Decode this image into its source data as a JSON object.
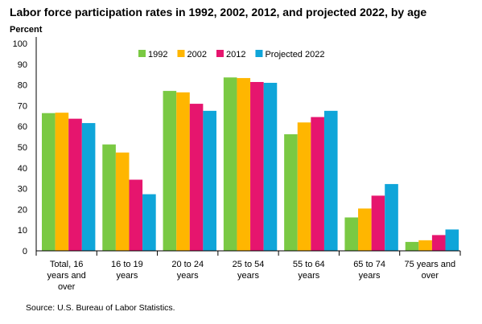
{
  "chart_data": {
    "type": "bar",
    "title": "Labor force participation rates in 1992, 2002, 2012, and projected 2022, by age",
    "ylabel": "Percent",
    "xlabel": "",
    "ylim": [
      0,
      100
    ],
    "yticks": [
      0,
      10,
      20,
      30,
      40,
      50,
      60,
      70,
      80,
      90,
      100
    ],
    "grid": false,
    "legend_position": "top",
    "categories": [
      [
        "Total, 16",
        "years and",
        "over"
      ],
      [
        "16 to 19",
        "years"
      ],
      [
        "20 to 24",
        "years"
      ],
      [
        "25 to 54",
        "years"
      ],
      [
        "55 to 64",
        "years"
      ],
      [
        "65 to 74",
        "years"
      ],
      [
        "75 years and",
        "over"
      ]
    ],
    "series": [
      {
        "name": "1992",
        "color": "#7ac943",
        "values": [
          66.4,
          51.3,
          77.1,
          83.6,
          56.2,
          16.1,
          4.3
        ]
      },
      {
        "name": "2002",
        "color": "#ffb600",
        "values": [
          66.6,
          47.4,
          76.4,
          83.3,
          61.9,
          20.4,
          5.1
        ]
      },
      {
        "name": "2012",
        "color": "#e6156e",
        "values": [
          63.7,
          34.3,
          70.9,
          81.4,
          64.5,
          26.6,
          7.6
        ]
      },
      {
        "name": "Projected 2022",
        "color": "#0fa5d9",
        "values": [
          61.6,
          27.3,
          67.5,
          81.0,
          67.5,
          32.2,
          10.3
        ]
      }
    ],
    "source": "Source: U.S. Bureau of Labor Statistics."
  }
}
